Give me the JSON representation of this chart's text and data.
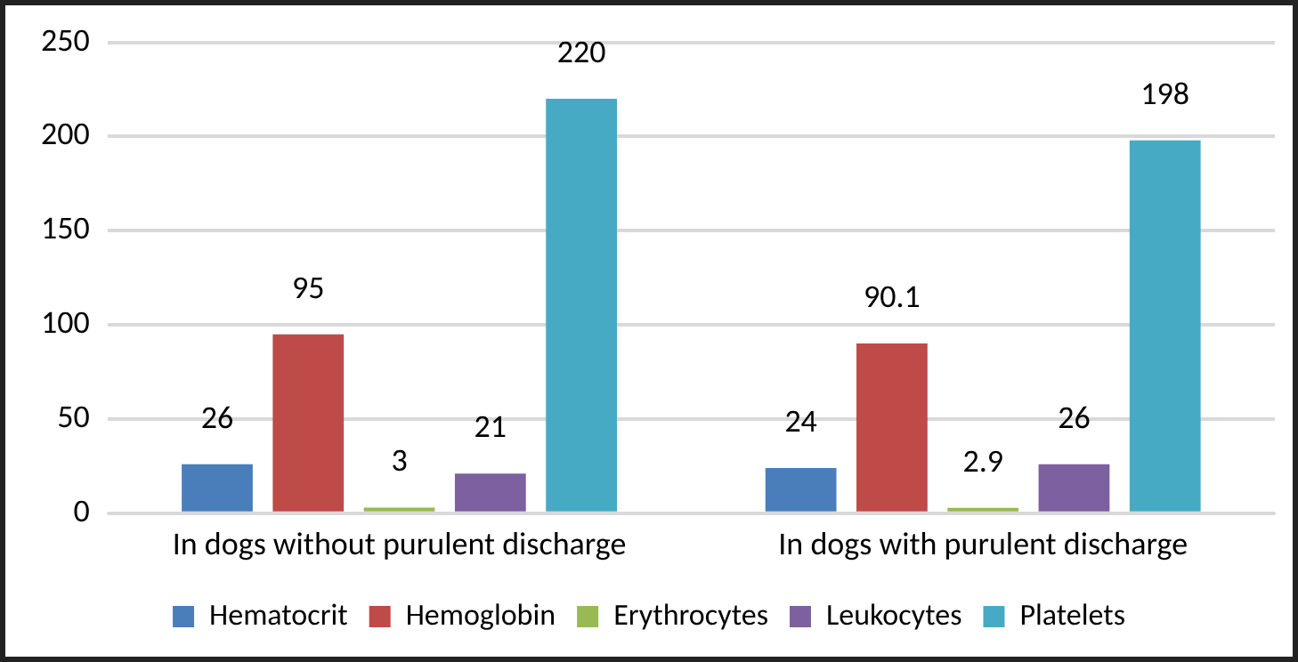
{
  "chart_data": {
    "type": "bar",
    "categories": [
      "In dogs without purulent discharge",
      "In dogs with purulent discharge"
    ],
    "series": [
      {
        "name": "Hematocrit",
        "color": "#4a7ebb",
        "values": [
          26,
          24
        ]
      },
      {
        "name": "Hemoglobin",
        "color": "#be4b48",
        "values": [
          95,
          90.1
        ]
      },
      {
        "name": "Erythrocytes",
        "color": "#98b954",
        "values": [
          3,
          2.9
        ]
      },
      {
        "name": "Leukocytes",
        "color": "#7d60a0",
        "values": [
          21,
          26
        ]
      },
      {
        "name": "Platelets",
        "color": "#46aac5",
        "values": [
          220,
          198
        ]
      }
    ],
    "ylim": [
      0,
      250
    ],
    "yticks": [
      0,
      50,
      100,
      150,
      200,
      250
    ],
    "grid": "y",
    "legend": "bottom",
    "data_labels": true
  }
}
